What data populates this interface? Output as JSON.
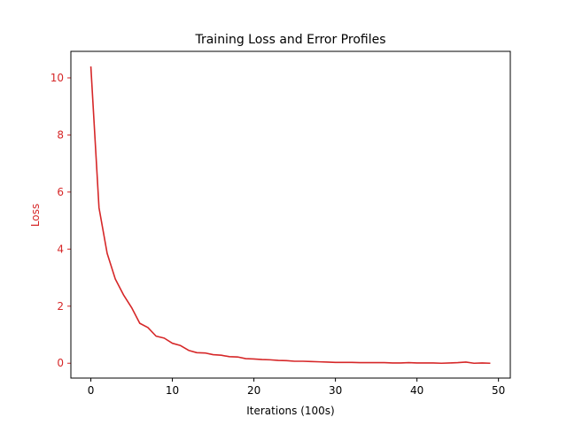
{
  "chart_data": {
    "type": "line",
    "title": "Training Loss and Error Profiles",
    "xlabel": "Iterations (100s)",
    "ylabel": "Loss",
    "xlim": [
      -2.45,
      51.45
    ],
    "ylim": [
      -0.52,
      10.93
    ],
    "xticks": [
      0,
      10,
      20,
      30,
      40,
      50
    ],
    "yticks": [
      0,
      2,
      4,
      6,
      8,
      10
    ],
    "grid": false,
    "series": [
      {
        "color": "#d62728",
        "x": [
          0,
          1,
          2,
          3,
          4,
          5,
          6,
          7,
          8,
          9,
          10,
          11,
          12,
          13,
          14,
          15,
          16,
          17,
          18,
          19,
          20,
          21,
          22,
          23,
          24,
          25,
          26,
          27,
          28,
          29,
          30,
          31,
          32,
          33,
          34,
          35,
          36,
          37,
          38,
          39,
          40,
          41,
          42,
          43,
          44,
          45,
          46,
          47,
          48,
          49
        ],
        "y": [
          10.4,
          5.45,
          3.85,
          2.95,
          2.4,
          1.95,
          1.4,
          1.25,
          0.95,
          0.88,
          0.7,
          0.62,
          0.45,
          0.37,
          0.36,
          0.3,
          0.28,
          0.23,
          0.22,
          0.16,
          0.15,
          0.13,
          0.12,
          0.1,
          0.09,
          0.07,
          0.07,
          0.06,
          0.05,
          0.04,
          0.03,
          0.03,
          0.03,
          0.02,
          0.02,
          0.02,
          0.02,
          0.01,
          0.01,
          0.02,
          0.01,
          0.01,
          0.01,
          0.0,
          0.01,
          0.02,
          0.04,
          0.0,
          0.01,
          0.0
        ]
      }
    ],
    "colors": {
      "axis_accent": "#d62728",
      "spine": "#000000"
    }
  }
}
